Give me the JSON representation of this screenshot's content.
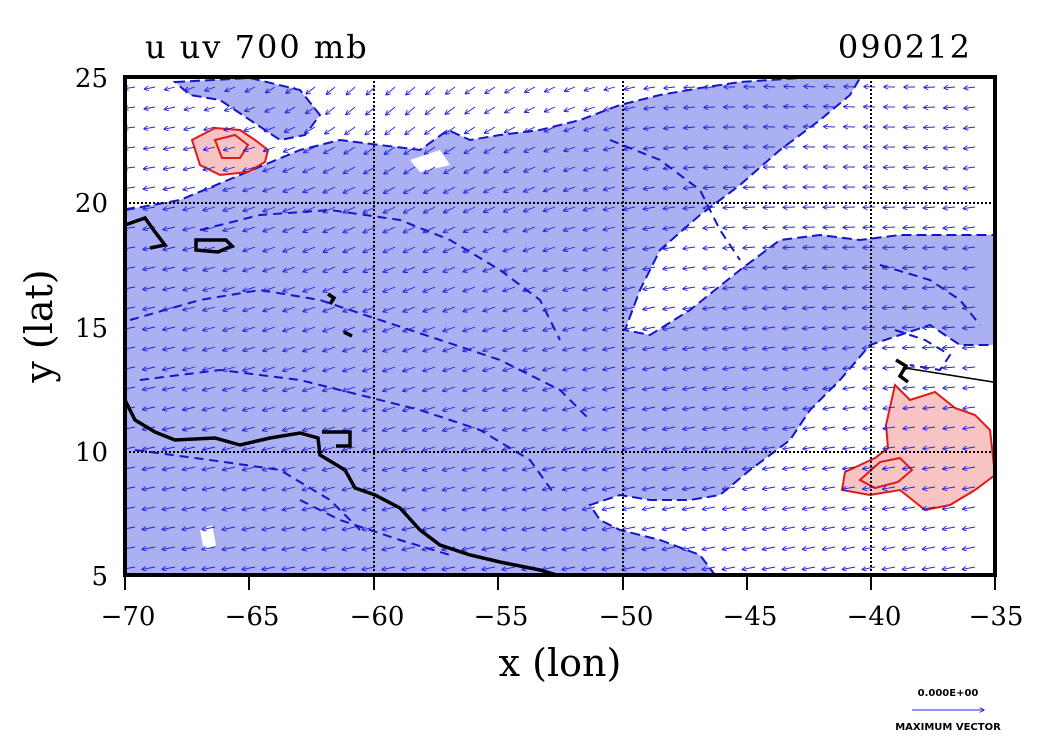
{
  "header": {
    "title_left": "u  uv 700 mb",
    "title_right": "090212"
  },
  "axes": {
    "xlabel": "x (lon)",
    "ylabel": "y (lat)",
    "x_ticks": [
      "−70",
      "−65",
      "−60",
      "−55",
      "−50",
      "−45",
      "−40",
      "−35"
    ],
    "y_ticks": [
      "25",
      "20",
      "15",
      "10",
      "5"
    ]
  },
  "legend": {
    "value_label": "0.000E+00",
    "caption": "MAXIMUM VECTOR"
  },
  "colors": {
    "negative_fill": "#aab0f2",
    "negative_contour": "#1414c8",
    "positive_fill": "#f7c3c3",
    "positive_contour": "#e01a1a",
    "vectors": "#2222dd",
    "coastline": "#000000",
    "grid": "#000000"
  },
  "chart_data": {
    "type": "map",
    "variable": "u  uv 700 mb",
    "date": "090212",
    "xlabel": "x (lon)",
    "ylabel": "y (lat)",
    "xlim": [
      -70,
      -35
    ],
    "ylim": [
      5,
      25
    ],
    "x_ticks": [
      -70,
      -65,
      -60,
      -55,
      -50,
      -45,
      -40,
      -35
    ],
    "y_ticks": [
      5,
      10,
      15,
      20,
      25
    ],
    "grid_lon": [
      -60,
      -50,
      -40
    ],
    "grid_lat": [
      10,
      20
    ],
    "layers": [
      "shaded u contours (blue = easterly, red = westerly)",
      "wind vectors",
      "coastline"
    ],
    "vector_legend": "0.000E+00 MAXIMUM VECTOR"
  }
}
